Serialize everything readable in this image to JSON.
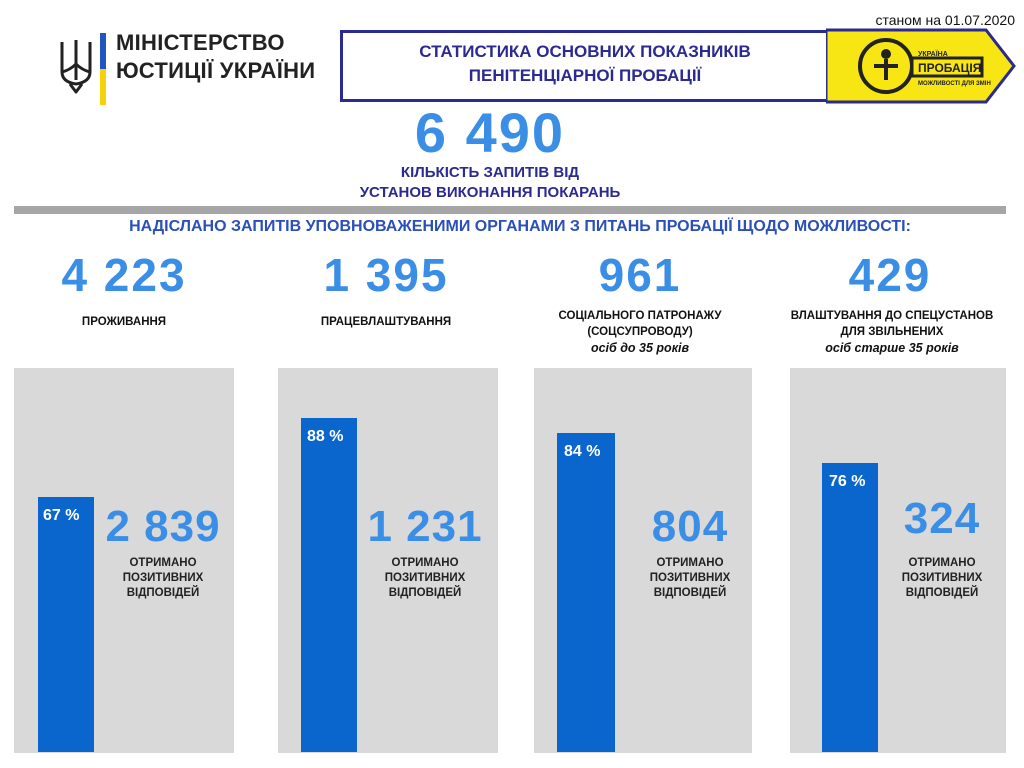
{
  "header": {
    "date": "станом на 01.07.2020",
    "ministry_line1": "МІНІСТЕРСТВО",
    "ministry_line2": "ЮСТИЦІЇ УКРАЇНИ",
    "banner_line1": "СТАТИСТИКА ОСНОВНИХ ПОКАЗНИКІВ",
    "banner_line2": "ПЕНІТЕНЦІАРНОЇ ПРОБАЦІЇ",
    "logo_text1": "УКРАЇНА",
    "logo_text2": "ПРОБАЦІЯ",
    "logo_text3": "МОЖЛИВОСТІ ДЛЯ ЗМІН"
  },
  "total": {
    "value": "6 490",
    "label_line1": "КІЛЬКІСТЬ ЗАПИТІВ ВІД",
    "label_line2": "УСТАНОВ ВИКОНАННЯ ПОКАРАНЬ"
  },
  "subtitle": "НАДІСЛАНО ЗАПИТІВ УПОВНОВАЖЕНИМИ ОРГАНАМИ З ПИТАНЬ ПРОБАЦІЇ  ЩОДО МОЖЛИВОСТІ:",
  "colors": {
    "accent_blue": "#3a8ee6",
    "bar_blue": "#0a66cc",
    "panel_grey": "#d9d9d9",
    "title_navy": "#2a2a90"
  },
  "chart_data": {
    "type": "bar",
    "categories": [
      "ПРОЖИВАННЯ",
      "ПРАЦЕВЛАШТУВАННЯ",
      "СОЦІАЛЬНОГО ПАТРОНАЖУ (СОЦСУПРОВОДУ) осіб до 35 років",
      "ВЛАШТУВАННЯ ДО СПЕЦУСТАНОВ ДЛЯ ЗВІЛЬНЕНИХ осіб старше 35 років"
    ],
    "ylim": [
      0,
      100
    ],
    "series": [
      {
        "values": [
          67,
          88,
          84,
          76
        ]
      }
    ],
    "requests": [
      4223,
      1395,
      961,
      429
    ],
    "positive_responses": [
      2839,
      1231,
      804,
      324
    ]
  },
  "columns": [
    {
      "value": "4 223",
      "label_line1": "ПРОЖИВАННЯ",
      "label_line2": "",
      "label_line3": "",
      "pct": 67,
      "pct_label": "67 %",
      "resp_value": "2 839",
      "resp_l1": "ОТРИМАНО",
      "resp_l2": "ПОЗИТИВНИХ",
      "resp_l3": "ВІДПОВІДЕЙ"
    },
    {
      "value": "1 395",
      "label_line1": "ПРАЦЕВЛАШТУВАННЯ",
      "label_line2": "",
      "label_line3": "",
      "pct": 88,
      "pct_label": "88 %",
      "resp_value": "1 231",
      "resp_l1": "ОТРИМАНО",
      "resp_l2": "ПОЗИТИВНИХ",
      "resp_l3": "ВІДПОВІДЕЙ"
    },
    {
      "value": "961",
      "label_line1": "СОЦІАЛЬНОГО ПАТРОНАЖУ",
      "label_line2": "(СОЦСУПРОВОДУ)",
      "label_line3": "осіб до 35 років",
      "pct": 84,
      "pct_label": "84 %",
      "resp_value": "804",
      "resp_l1": "ОТРИМАНО",
      "resp_l2": "ПОЗИТИВНИХ",
      "resp_l3": "ВІДПОВІДЕЙ"
    },
    {
      "value": "429",
      "label_line1": "ВЛАШТУВАННЯ ДО СПЕЦУСТАНОВ",
      "label_line2": "ДЛЯ ЗВІЛЬНЕНИХ",
      "label_line3": "осіб старше 35 років",
      "pct": 76,
      "pct_label": "76 %",
      "resp_value": "324",
      "resp_l1": "ОТРИМАНО",
      "resp_l2": "ПОЗИТИВНИХ",
      "resp_l3": "ВІДПОВІДЕЙ"
    }
  ]
}
